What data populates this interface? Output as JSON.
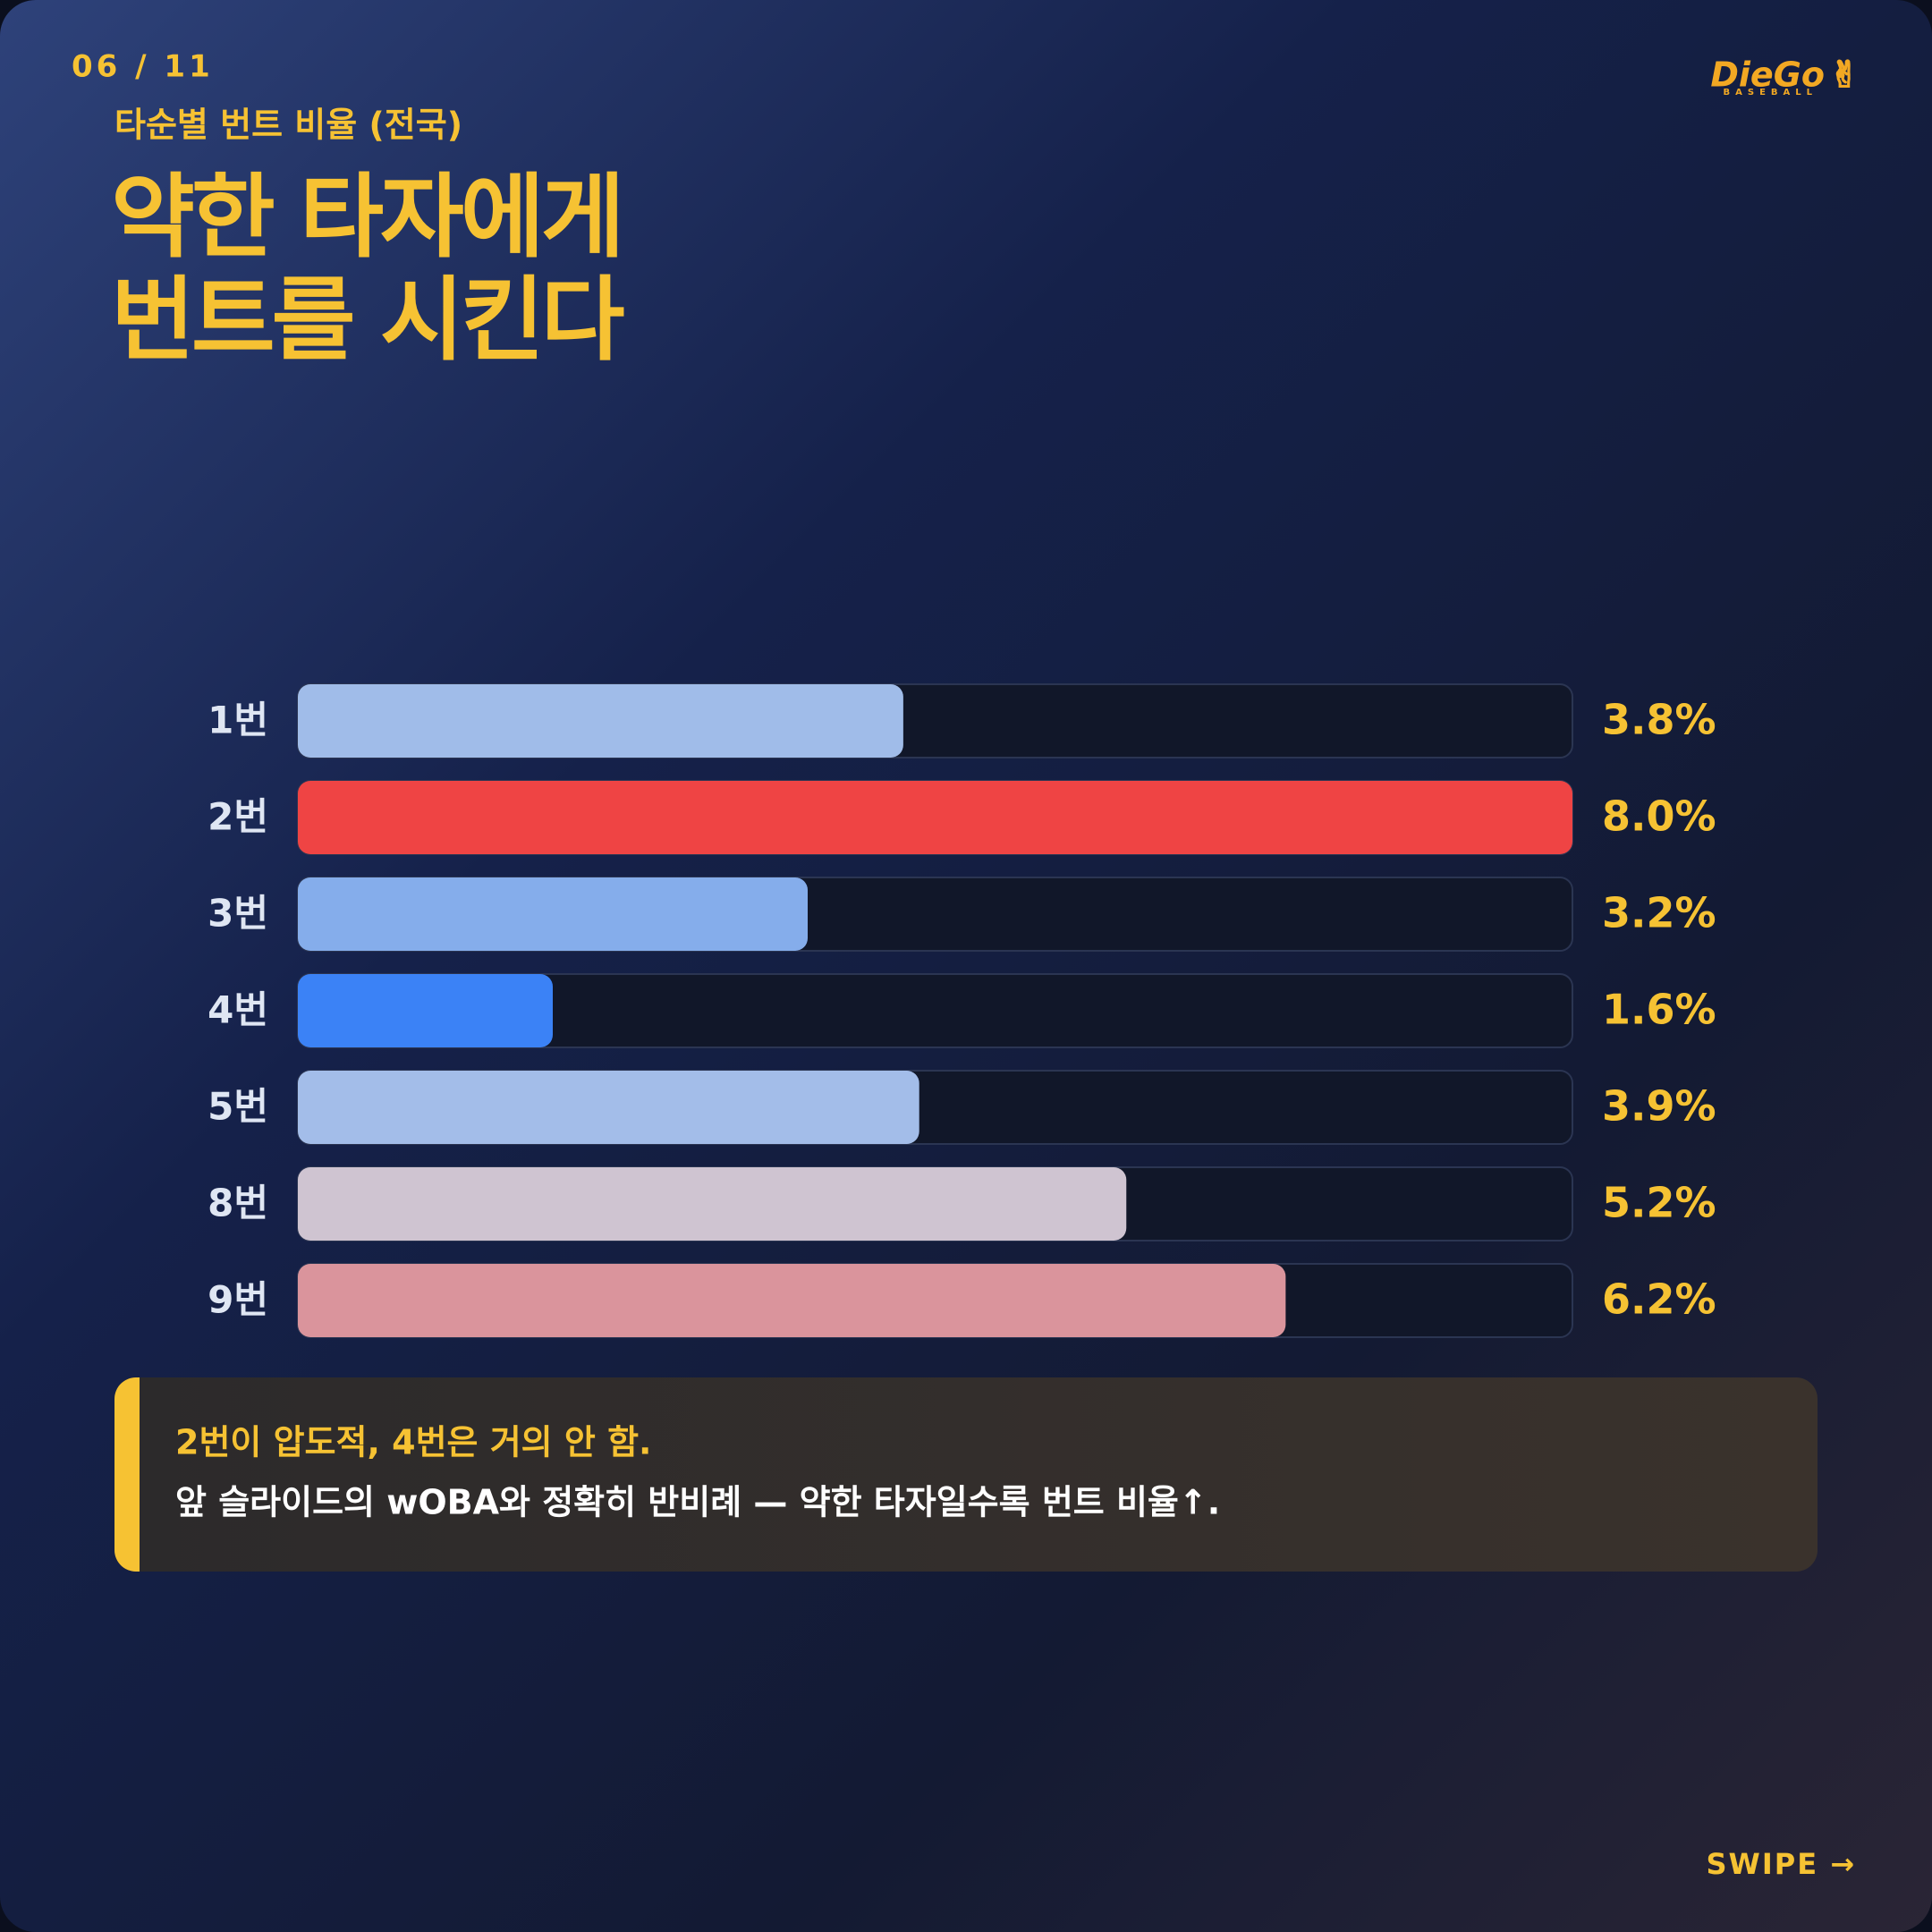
{
  "page_number": "06 / 11",
  "logo": {
    "name": "DieGo",
    "tagline": "BASEBALL"
  },
  "chart_data": {
    "type": "bar",
    "orientation": "horizontal",
    "subtitle": "타순별 번트 비율 (전국)",
    "title": [
      "약한 타자에게",
      "번트를 시킨다"
    ],
    "categories": [
      "1번",
      "2번",
      "3번",
      "4번",
      "5번",
      "8번",
      "9번"
    ],
    "values": [
      3.8,
      8.0,
      3.2,
      1.6,
      3.9,
      5.2,
      6.2
    ],
    "value_labels": [
      "3.8%",
      "8.0%",
      "3.2%",
      "1.6%",
      "3.9%",
      "5.2%",
      "6.2%"
    ],
    "colors": [
      "#a0bce9",
      "#ef4444",
      "#85adeb",
      "#3b82f6",
      "#a3bde9",
      "#cfc4d1",
      "#da949c"
    ],
    "xlim": [
      0,
      8
    ]
  },
  "note": {
    "lines": [
      "2번이 압도적, 4번은 거의 안 함.",
      "앞 슬라이드의 wOBA와 정확히 반비례 — 약한 타자일수록 번트 비율↑."
    ]
  },
  "swipe": "SWIPE →"
}
